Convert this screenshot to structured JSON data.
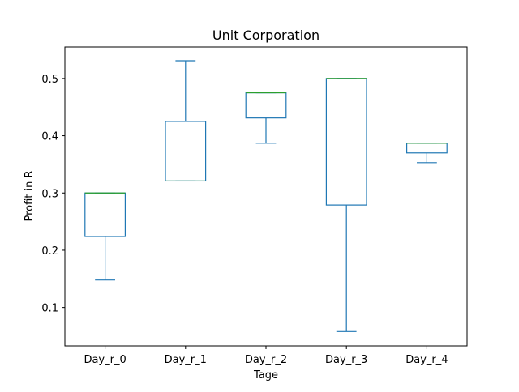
{
  "chart_data": {
    "type": "box",
    "title": "Unit Corporation",
    "xlabel": "Tage",
    "ylabel": "Profit in R",
    "ylim": [
      0.033,
      0.555
    ],
    "yticks": [
      0.1,
      0.2,
      0.3,
      0.4,
      0.5
    ],
    "ytick_labels": [
      "0.1",
      "0.2",
      "0.3",
      "0.4",
      "0.5"
    ],
    "grid": false,
    "categories": [
      "Day_r_0",
      "Day_r_1",
      "Day_r_2",
      "Day_r_3",
      "Day_r_4"
    ],
    "boxes": [
      {
        "category": "Day_r_0",
        "whisker_low": 0.148,
        "q1": 0.224,
        "median": 0.3,
        "q3": 0.3,
        "whisker_high": 0.3
      },
      {
        "category": "Day_r_1",
        "whisker_low": 0.321,
        "q1": 0.321,
        "median": 0.321,
        "q3": 0.425,
        "whisker_high": 0.531
      },
      {
        "category": "Day_r_2",
        "whisker_low": 0.387,
        "q1": 0.431,
        "median": 0.475,
        "q3": 0.475,
        "whisker_high": 0.475
      },
      {
        "category": "Day_r_3",
        "whisker_low": 0.058,
        "q1": 0.279,
        "median": 0.5,
        "q3": 0.5,
        "whisker_high": 0.5
      },
      {
        "category": "Day_r_4",
        "whisker_low": 0.353,
        "q1": 0.37,
        "median": 0.387,
        "q3": 0.387,
        "whisker_high": 0.387
      }
    ],
    "colors": {
      "box": "#1f77b4",
      "median": "#2ca02c",
      "axes": "#000000"
    }
  }
}
